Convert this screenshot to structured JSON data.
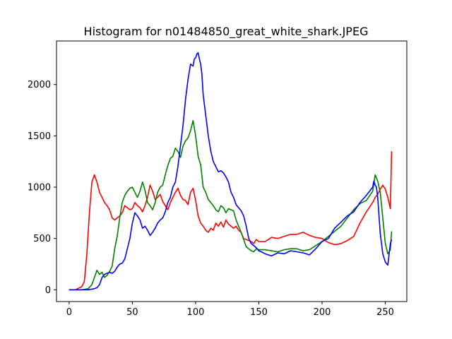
{
  "chart_data": {
    "type": "line",
    "title": "Histogram for n01484850_great_white_shark.JPEG",
    "xlabel": "",
    "ylabel": "",
    "xlim": [
      -10,
      267
    ],
    "ylim": [
      -115,
      2425
    ],
    "xticks": [
      0,
      50,
      100,
      150,
      200,
      250
    ],
    "yticks": [
      0,
      500,
      1000,
      1500,
      2000
    ],
    "grid": false,
    "legend": "none",
    "series": [
      {
        "color": "#ff0000",
        "x": [
          0,
          5,
          10,
          12,
          14,
          16,
          18,
          20,
          22,
          24,
          26,
          28,
          30,
          32,
          34,
          36,
          38,
          40,
          42,
          44,
          46,
          48,
          50,
          52,
          54,
          56,
          58,
          60,
          62,
          64,
          66,
          68,
          70,
          72,
          74,
          76,
          78,
          80,
          82,
          84,
          86,
          88,
          90,
          92,
          94,
          96,
          98,
          100,
          102,
          104,
          106,
          108,
          110,
          112,
          114,
          116,
          118,
          120,
          122,
          124,
          126,
          128,
          130,
          132,
          134,
          136,
          138,
          140,
          142,
          144,
          146,
          148,
          150,
          155,
          160,
          165,
          170,
          175,
          180,
          185,
          190,
          195,
          200,
          205,
          210,
          215,
          220,
          225,
          230,
          235,
          240,
          242,
          244,
          246,
          248,
          250,
          252,
          254,
          255
        ],
        "values": [
          0,
          0,
          30,
          80,
          350,
          750,
          1050,
          1120,
          1050,
          950,
          900,
          850,
          820,
          780,
          700,
          680,
          700,
          720,
          750,
          820,
          800,
          780,
          790,
          850,
          820,
          800,
          760,
          820,
          900,
          1020,
          960,
          880,
          900,
          930,
          860,
          820,
          780,
          850,
          900,
          950,
          990,
          920,
          880,
          870,
          830,
          950,
          990,
          870,
          720,
          650,
          620,
          580,
          560,
          600,
          580,
          650,
          620,
          660,
          610,
          680,
          640,
          620,
          600,
          620,
          580,
          560,
          500,
          490,
          480,
          470,
          450,
          490,
          470,
          470,
          510,
          500,
          520,
          540,
          540,
          560,
          530,
          510,
          500,
          460,
          440,
          450,
          480,
          520,
          650,
          760,
          850,
          900,
          930,
          980,
          1020,
          980,
          900,
          790,
          1350
        ]
      },
      {
        "color": "#008000",
        "x": [
          0,
          5,
          10,
          15,
          18,
          20,
          22,
          24,
          26,
          28,
          30,
          32,
          34,
          36,
          38,
          40,
          42,
          44,
          46,
          48,
          50,
          52,
          54,
          56,
          58,
          60,
          62,
          64,
          66,
          68,
          70,
          72,
          74,
          76,
          78,
          80,
          82,
          84,
          86,
          88,
          90,
          92,
          94,
          96,
          98,
          100,
          102,
          104,
          106,
          108,
          110,
          112,
          114,
          116,
          118,
          120,
          122,
          124,
          126,
          128,
          130,
          132,
          134,
          136,
          138,
          140,
          142,
          144,
          146,
          148,
          150,
          155,
          160,
          165,
          170,
          175,
          180,
          185,
          190,
          195,
          200,
          205,
          210,
          215,
          220,
          225,
          230,
          235,
          240,
          242,
          244,
          246,
          248,
          250,
          252,
          254,
          255
        ],
        "values": [
          0,
          0,
          0,
          10,
          50,
          120,
          190,
          150,
          170,
          120,
          140,
          180,
          230,
          400,
          520,
          700,
          850,
          920,
          960,
          990,
          1000,
          950,
          900,
          960,
          1050,
          970,
          850,
          820,
          780,
          850,
          950,
          1000,
          1020,
          1120,
          1210,
          1280,
          1300,
          1380,
          1350,
          1290,
          1400,
          1450,
          1480,
          1550,
          1650,
          1500,
          1300,
          1220,
          1000,
          950,
          880,
          850,
          820,
          780,
          760,
          820,
          800,
          750,
          790,
          780,
          770,
          680,
          620,
          560,
          490,
          420,
          400,
          380,
          370,
          400,
          390,
          390,
          380,
          370,
          390,
          400,
          400,
          380,
          390,
          430,
          470,
          520,
          570,
          620,
          700,
          780,
          840,
          870,
          960,
          1120,
          1060,
          950,
          700,
          450,
          350,
          390,
          570
        ]
      },
      {
        "color": "#0000ff",
        "x": [
          0,
          5,
          10,
          15,
          20,
          22,
          24,
          26,
          28,
          30,
          32,
          34,
          36,
          38,
          40,
          42,
          44,
          46,
          48,
          50,
          52,
          54,
          56,
          58,
          60,
          62,
          64,
          66,
          68,
          70,
          72,
          74,
          76,
          78,
          80,
          82,
          84,
          86,
          88,
          90,
          92,
          94,
          96,
          98,
          99,
          100,
          101,
          102,
          103,
          104,
          105,
          106,
          108,
          110,
          112,
          114,
          116,
          118,
          120,
          122,
          124,
          126,
          128,
          130,
          132,
          134,
          136,
          138,
          140,
          142,
          144,
          146,
          148,
          150,
          152,
          155,
          160,
          165,
          170,
          175,
          180,
          185,
          190,
          195,
          200,
          205,
          210,
          215,
          220,
          225,
          230,
          235,
          240,
          241,
          242,
          243,
          244,
          246,
          248,
          250,
          252,
          254,
          255
        ],
        "values": [
          0,
          0,
          0,
          0,
          10,
          20,
          50,
          120,
          150,
          160,
          170,
          160,
          180,
          220,
          250,
          260,
          300,
          400,
          500,
          650,
          750,
          720,
          680,
          600,
          620,
          580,
          530,
          560,
          600,
          650,
          680,
          700,
          760,
          850,
          900,
          1000,
          1050,
          1200,
          1400,
          1600,
          1850,
          2050,
          2200,
          2180,
          2250,
          2260,
          2300,
          2310,
          2250,
          2200,
          2100,
          1900,
          1700,
          1500,
          1350,
          1250,
          1200,
          1150,
          1160,
          1140,
          1100,
          1050,
          950,
          900,
          830,
          800,
          770,
          720,
          620,
          500,
          450,
          430,
          410,
          380,
          370,
          350,
          330,
          360,
          350,
          380,
          370,
          360,
          340,
          400,
          470,
          500,
          600,
          660,
          720,
          760,
          850,
          920,
          1000,
          1060,
          1020,
          1000,
          900,
          550,
          350,
          270,
          240,
          450,
          490
        ]
      }
    ]
  }
}
